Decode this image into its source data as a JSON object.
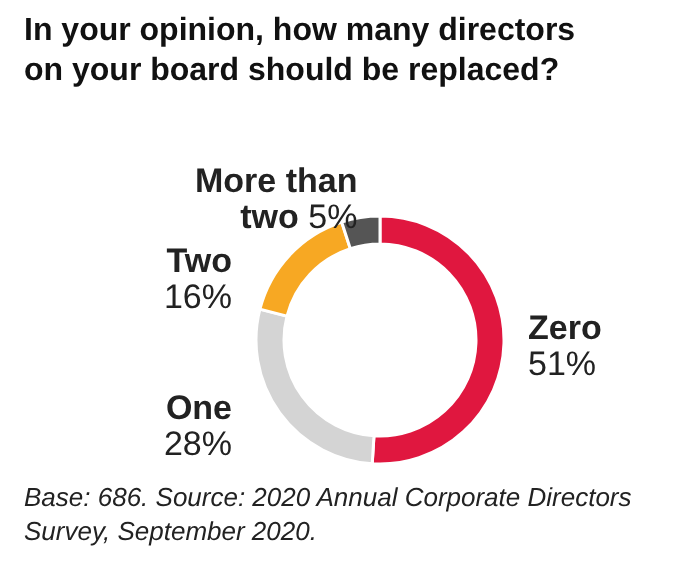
{
  "chart_data": {
    "type": "donut",
    "title": "In your opinion, how many directors on your board should be replaced?",
    "categories": [
      "Zero",
      "One",
      "Two",
      "More than two"
    ],
    "values": [
      51,
      28,
      16,
      5
    ],
    "colors": [
      "#e0173f",
      "#d4d4d4",
      "#f7a823",
      "#555555"
    ],
    "value_labels": [
      "51%",
      "28%",
      "16%",
      "5%"
    ],
    "annotations": [
      "Base: 686. Source: 2020 Annual Corporate Directors Survey, September 2020."
    ]
  }
}
